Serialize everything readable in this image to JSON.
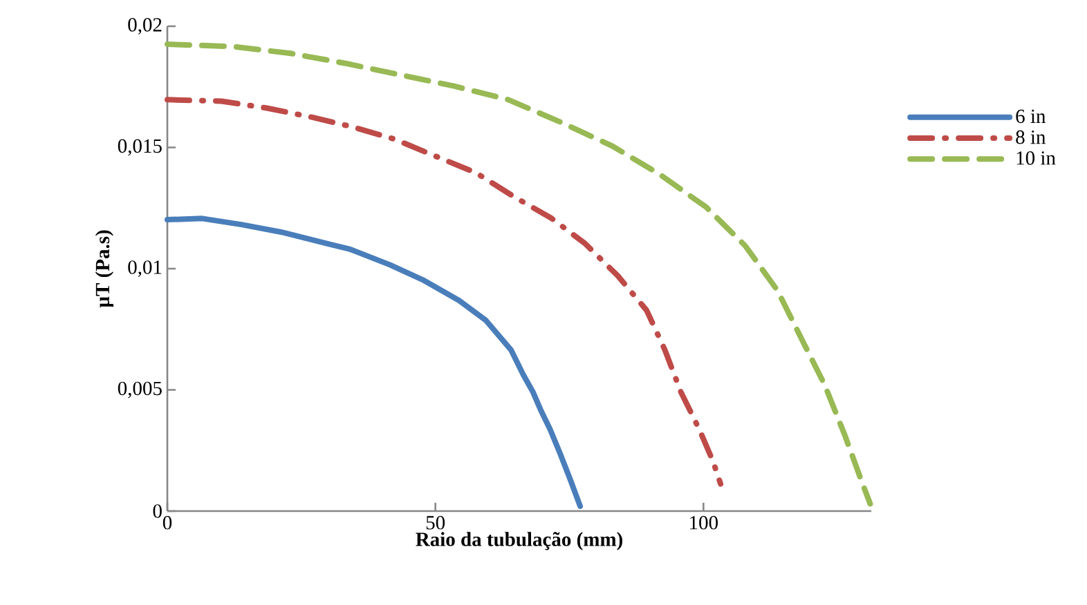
{
  "chart_data": {
    "type": "line",
    "xlabel": "Raio da tubulação (mm)",
    "ylabel": "**µT  (Pa.s)**",
    "xlim": [
      0,
      131.3
    ],
    "ylim": [
      0,
      0.02
    ],
    "xticks": [
      0,
      50,
      100
    ],
    "yticks": [
      0,
      {
        "value": 0.005,
        "label": "0,005"
      },
      {
        "value": 0.01,
        "label": "0,01"
      },
      {
        "value": 0.015,
        "label": "0,015"
      },
      {
        "value": 0.02,
        "label": "0,02"
      }
    ],
    "grid": false,
    "legend": "right",
    "marker": "none",
    "series": [
      {
        "name": "6 in",
        "color": "#4a7ebb",
        "line_style": "solid",
        "x": [
          0,
          6.5,
          13.8,
          21.2,
          30.4,
          34.1,
          41.5,
          47.9,
          54.4,
          59.4,
          64.1,
          66.4,
          68.2,
          69.6,
          71.4,
          73.3,
          75.1,
          77.0
        ],
        "values": [
          0.01202,
          0.01207,
          0.01182,
          0.01151,
          0.011,
          0.0108,
          0.01016,
          0.00951,
          0.00869,
          0.00787,
          0.00665,
          0.00562,
          0.00491,
          0.00419,
          0.00337,
          0.00235,
          0.00133,
          0.0002
        ]
      },
      {
        "name": "8 in",
        "color": "#be4b48",
        "line_style": "dashdot",
        "x": [
          0,
          10.1,
          18.4,
          26.7,
          34.5,
          42.4,
          49.8,
          57.6,
          64.5,
          71.7,
          77.9,
          84.0,
          89.4,
          92.8,
          95.8,
          99.3,
          101.8,
          103.2
        ],
        "values": [
          0.01697,
          0.01691,
          0.01663,
          0.01626,
          0.01585,
          0.01534,
          0.01466,
          0.01395,
          0.01299,
          0.01207,
          0.01104,
          0.00971,
          0.00828,
          0.00665,
          0.00491,
          0.00333,
          0.00204,
          0.00112
        ]
      },
      {
        "name": "10 in",
        "color": "#98b954",
        "line_style": "dashed",
        "x": [
          0,
          12.4,
          23.0,
          33.2,
          43.3,
          53.5,
          63.6,
          73.3,
          82.9,
          91.7,
          100.5,
          107.8,
          113.8,
          118.4,
          122.6,
          126.3,
          129.5,
          131.1
        ],
        "values": [
          0.01926,
          0.01916,
          0.01888,
          0.01847,
          0.018,
          0.01753,
          0.01697,
          0.01605,
          0.01507,
          0.01391,
          0.01254,
          0.01094,
          0.0091,
          0.00706,
          0.00521,
          0.00317,
          0.00123,
          0.0003
        ]
      }
    ]
  }
}
